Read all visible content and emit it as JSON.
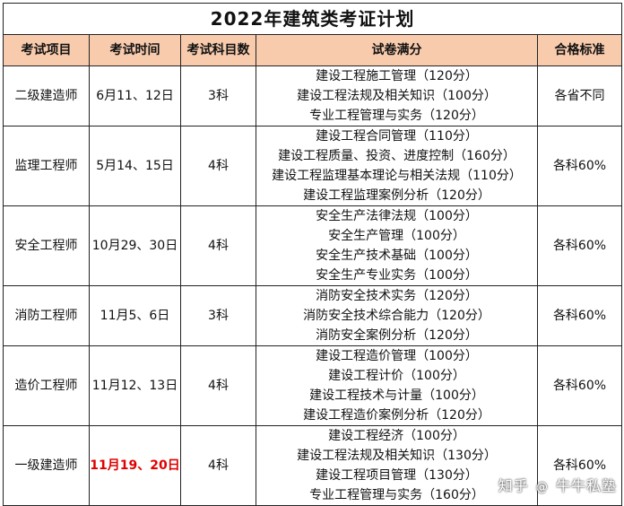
{
  "title": "2022年建筑类考证计划",
  "headers": [
    "考试项目",
    "考试时间",
    "考试科目数",
    "试卷满分",
    "合格标准"
  ],
  "rows": [
    {
      "name": "二级建造师",
      "date": "6月11、12日",
      "count": "3科",
      "papers": [
        "建设工程施工管理（120分）",
        "建设工程法规及相关知识（100分）",
        "专业工程管理与实务（120分）"
      ],
      "standard": "各省不同"
    },
    {
      "name": "监理工程师",
      "date": "5月14、15日",
      "count": "4科",
      "papers": [
        "建设工程合同管理（110分）",
        "建设工程质量、投资、进度控制（160分）",
        "建设工程监理基本理论与相关法规（110分）",
        "建设工程监理案例分析（120分）"
      ],
      "standard": "各科60%"
    },
    {
      "name": "安全工程师",
      "date": "10月29、30日",
      "count": "4科",
      "papers": [
        "安全生产法律法规（100分）",
        "安全生产管理（100分）",
        "安全生产技术基础（100分）",
        "安全生产专业实务（100分）"
      ],
      "standard": "各科60%"
    },
    {
      "name": "消防工程师",
      "date": "11月5、6日",
      "count": "3科",
      "papers": [
        "消防安全技术实务（120分）",
        "消防安全技术综合能力（120分）",
        "消防安全案例分析（120分）"
      ],
      "standard": "各科60%"
    },
    {
      "name": "造价工程师",
      "date": "11月12、13日",
      "count": "4科",
      "papers": [
        "建设工程造价管理（100分）",
        "建设工程计价（100分）",
        "建设工程技术与计量（100分）",
        "建设工程造价案例分析（120分）"
      ],
      "standard": "各科60%"
    },
    {
      "name": "一级建造师",
      "date": "11月19、20日",
      "count": "4科",
      "papers": [
        "建设工程经济（100分）",
        "建设工程法规及相关知识（130分）",
        "建设工程项目管理（130分）",
        "专业工程管理与实务（160分）"
      ],
      "standard": "各科60%"
    }
  ],
  "watermark": {
    "left": "知乎",
    "icon": "@",
    "right": "牛牛私塾"
  },
  "colors": {
    "header_bg": "#f8cbad",
    "highlight_date": "#e00000"
  }
}
